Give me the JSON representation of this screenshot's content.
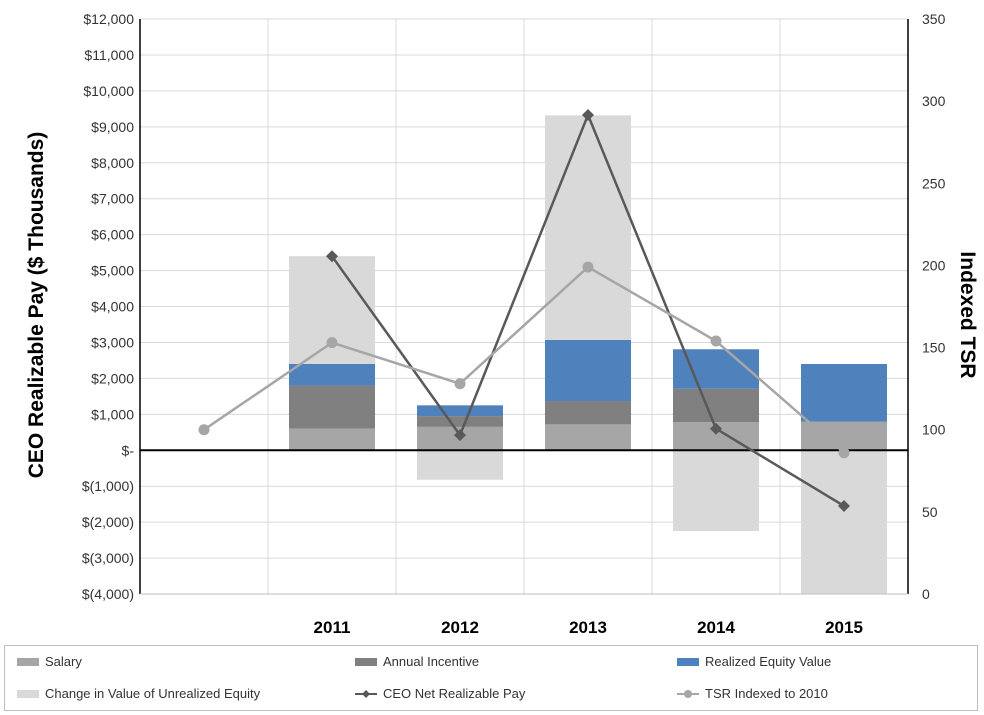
{
  "chart_data": {
    "type": "bar",
    "categories": [
      "",
      "2011",
      "2012",
      "2013",
      "2014",
      "2015"
    ],
    "ylabel": "CEO Realizable Pay  ($ Thousands)",
    "y2label": "Indexed TSR",
    "ylim": [
      -4000,
      12000
    ],
    "y2lim": [
      0,
      350
    ],
    "yticks": [
      "$12,000",
      "$11,000",
      "$10,000",
      "$9,000",
      "$8,000",
      "$7,000",
      "$6,000",
      "$5,000",
      "$4,000",
      "$3,000",
      "$2,000",
      "$1,000",
      "$-",
      "$(1,000)",
      "$(2,000)",
      "$(3,000)",
      "$(4,000)"
    ],
    "y2ticks": [
      "350",
      "300",
      "250",
      "200",
      "150",
      "100",
      "50",
      "0"
    ],
    "grid": true,
    "legend_position": "bottom",
    "colors": {
      "salary": "#a6a6a6",
      "annual_incentive": "#808080",
      "realized_equity": "#4f81bd",
      "unrealized_equity": "#d9d9d9",
      "ceo_net": "#595959",
      "tsr": "#a6a6a6"
    },
    "series": [
      {
        "name": "Salary",
        "kind": "bar",
        "key": "salary",
        "values": [
          null,
          600,
          650,
          720,
          780,
          800
        ]
      },
      {
        "name": "Annual Incentive",
        "kind": "bar",
        "key": "annual_incentive",
        "values": [
          null,
          1200,
          300,
          650,
          930,
          0
        ]
      },
      {
        "name": "Realized  Equity Value",
        "kind": "bar",
        "key": "realized_equity",
        "values": [
          null,
          600,
          300,
          1700,
          1100,
          1600
        ]
      },
      {
        "name": "Change in Value of Unrealized Equity",
        "kind": "bar",
        "key": "unrealized_equity",
        "values": [
          null,
          3000,
          -820,
          6250,
          -2250,
          -4000
        ]
      },
      {
        "name": "CEO Net Realizable Pay",
        "kind": "line",
        "axis": "y",
        "key": "ceo_net",
        "values": [
          null,
          5400,
          420,
          9330,
          600,
          -1550
        ]
      },
      {
        "name": "TSR Indexed to 2010",
        "kind": "line",
        "axis": "y2",
        "key": "tsr",
        "values": [
          100,
          153,
          128,
          199,
          154,
          86
        ]
      }
    ]
  }
}
